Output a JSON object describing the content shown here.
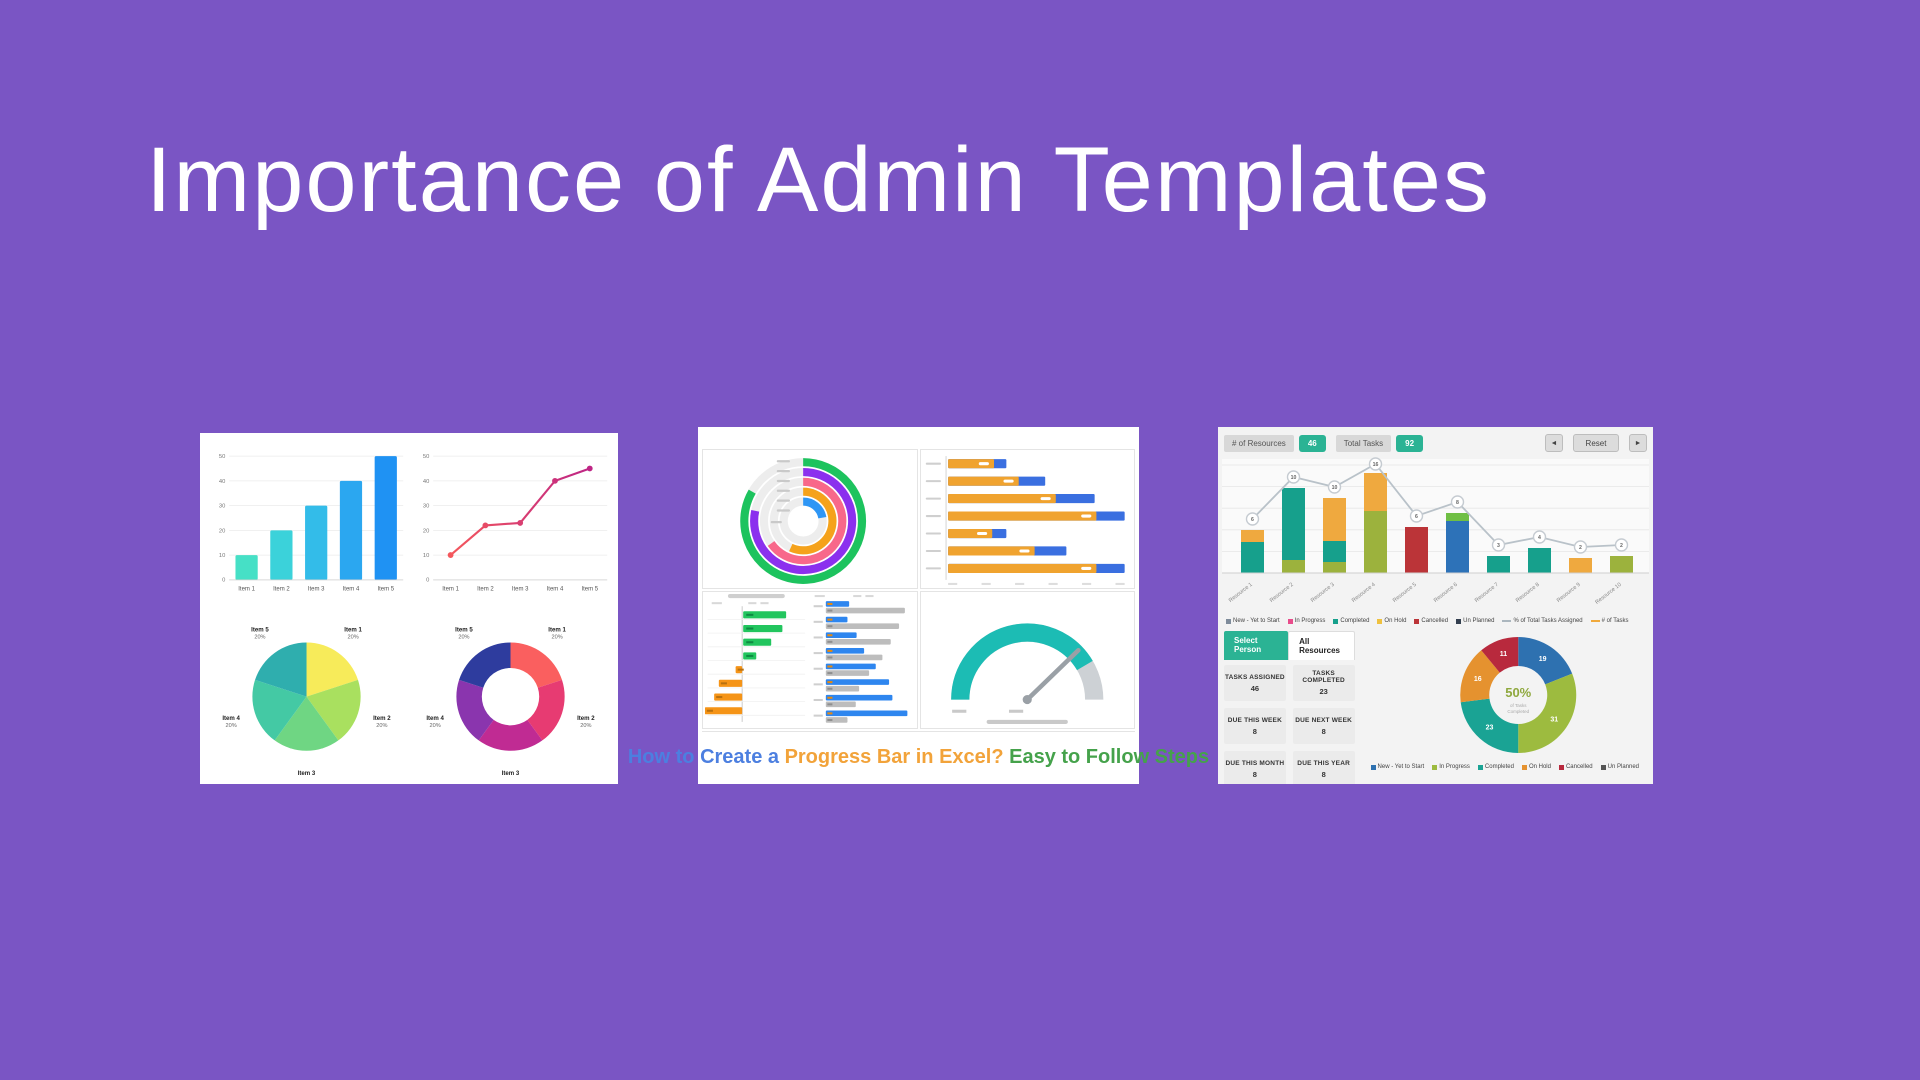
{
  "page": {
    "background": "#7A55C4",
    "title": "Importance of Admin Templates"
  },
  "progress_caption": [
    {
      "text": "How to Create a ",
      "color": "#4C7FE0"
    },
    {
      "text": "Progress Bar in Excel?",
      "color": "#F2A33A"
    },
    {
      "text": " Easy to Follow Steps",
      "color": "#45A24B"
    }
  ],
  "excel": {
    "toolbar": {
      "chip1_label": "# of Resources",
      "chip1_value": "46",
      "chip2_label": "Total Tasks",
      "chip2_value": "92",
      "prev": "◄",
      "reset": "Reset",
      "next": "►"
    },
    "tabs": [
      {
        "label": "Select Person",
        "active": true
      },
      {
        "label": "All Resources",
        "active": false
      }
    ],
    "stat_cards": [
      {
        "label": "TASKS ASSIGNED",
        "value": "46"
      },
      {
        "label": "TASKS COMPLETED",
        "value": "23"
      },
      {
        "label": "DUE THIS WEEK",
        "value": "8"
      },
      {
        "label": "DUE NEXT WEEK",
        "value": "8"
      },
      {
        "label": "DUE THIS MONTH",
        "value": "8"
      },
      {
        "label": "DUE THIS YEAR",
        "value": "8"
      }
    ]
  },
  "chart_data": [
    {
      "id": "bar5",
      "type": "bar",
      "categories": [
        "Item 1",
        "Item 2",
        "Item 3",
        "Item 4",
        "Item 5"
      ],
      "values": [
        10,
        20,
        30,
        40,
        50
      ],
      "ylim": [
        0,
        50
      ],
      "yticks": [
        0,
        10,
        20,
        30,
        40,
        50
      ],
      "grid": true,
      "colors": [
        "#46E0C6",
        "#3BD2DA",
        "#33BCE9",
        "#2BA7F0",
        "#1F92F3"
      ]
    },
    {
      "id": "line5",
      "type": "line",
      "categories": [
        "Item 1",
        "Item 2",
        "Item 3",
        "Item 4",
        "Item 5"
      ],
      "values": [
        10,
        22,
        23,
        40,
        45
      ],
      "ylim": [
        0,
        50
      ],
      "yticks": [
        0,
        10,
        20,
        30,
        40,
        50
      ],
      "grid": true,
      "color_start": "#F4575C",
      "color_end": "#BE2585"
    },
    {
      "id": "pie5",
      "type": "pie",
      "inner": 0,
      "labels": [
        "Item 1",
        "Item 2",
        "Item 3",
        "Item 4",
        "Item 5"
      ],
      "values": [
        20,
        20,
        20,
        20,
        20
      ],
      "value_labels": [
        "20%",
        "20%",
        "20%",
        "20%",
        "20%"
      ],
      "colors": [
        "#F7EB5A",
        "#A9E05F",
        "#6FD683",
        "#44C9A4",
        "#2FAEAE"
      ]
    },
    {
      "id": "donut5",
      "type": "pie",
      "inner": 0.53,
      "labels": [
        "Item 1",
        "Item 2",
        "Item 3",
        "Item 4",
        "Item 5"
      ],
      "values": [
        20,
        20,
        20,
        20,
        20
      ],
      "value_labels": [
        "20%",
        "20%",
        "20%",
        "20%",
        "20%"
      ],
      "colors": [
        "#FA5F5F",
        "#E73B72",
        "#C02B93",
        "#8A35AE",
        "#2E3C9E"
      ]
    },
    {
      "id": "rings",
      "type": "radial-progress",
      "track_color": "#EDEDED",
      "rings": [
        {
          "color": "#1DC35E",
          "sweep": 300
        },
        {
          "color": "#8B30EE",
          "sweep": 282
        },
        {
          "color": "#F8688A",
          "sweep": 235
        },
        {
          "color": "#F5A21B",
          "sweep": 205
        },
        {
          "color": "#2E96F5",
          "sweep": 80
        }
      ]
    },
    {
      "id": "hprog",
      "type": "progress-bars",
      "track_color": "#3A6FE0",
      "fill_color": "#F0A32F",
      "rows": [
        {
          "track": 33,
          "fill": 26
        },
        {
          "track": 55,
          "fill": 40
        },
        {
          "track": 83,
          "fill": 61
        },
        {
          "track": 100,
          "fill": 84
        },
        {
          "track": 33,
          "fill": 25
        },
        {
          "track": 67,
          "fill": 49
        },
        {
          "track": 100,
          "fill": 84
        }
      ]
    },
    {
      "id": "tornado",
      "type": "diverging-bars",
      "right_color": "#22C55E",
      "left_color": "#F59417",
      "right_values": [
        46,
        42,
        30,
        14
      ],
      "left_values": [
        7,
        25,
        30,
        40
      ]
    },
    {
      "id": "pairs",
      "type": "paired-bars",
      "primary_color": "#2E86EF",
      "secondary_color": "#BDBDBD",
      "rows": [
        [
          28,
          95
        ],
        [
          26,
          88
        ],
        [
          37,
          78
        ],
        [
          46,
          68
        ],
        [
          60,
          52
        ],
        [
          76,
          40
        ],
        [
          80,
          36
        ],
        [
          98,
          26
        ]
      ]
    },
    {
      "id": "gauge",
      "type": "gauge",
      "value": 0.83,
      "arc_color": "#1CBCB4",
      "track_color": "#CDD1D5",
      "needle_angle": 44
    },
    {
      "id": "combo",
      "type": "bar",
      "categories": [
        "Resource 1",
        "Resource 2",
        "Resource 3",
        "Resource 4",
        "Resource 5",
        "Resource 6",
        "Resource 7",
        "Resource 8",
        "Resource 9",
        "Resource 10"
      ],
      "stacks": [
        [
          [
            "#16A08C",
            31
          ],
          [
            "#EFA93F",
            12
          ]
        ],
        [
          [
            "#9CB23D",
            13
          ],
          [
            "#16A08C",
            72
          ]
        ],
        [
          [
            "#9CB23D",
            11
          ],
          [
            "#16A08C",
            21
          ],
          [
            "#EFA93F",
            43
          ]
        ],
        [
          [
            "#9CB23D",
            62
          ],
          [
            "#EFA93F",
            38
          ]
        ],
        [
          [
            "#BB3438",
            46
          ]
        ],
        [
          [
            "#2D72B8",
            52
          ],
          [
            "#6FBF44",
            8
          ]
        ],
        [
          [
            "#16A08C",
            17
          ]
        ],
        [
          [
            "#16A08C",
            25
          ]
        ],
        [
          [
            "#EFA93F",
            15
          ]
        ],
        [
          [
            "#9CB23D",
            17
          ]
        ]
      ],
      "line_values": [
        6,
        10,
        10,
        16,
        6,
        8,
        3,
        4,
        2,
        2
      ],
      "line_color": "#B9C2C9",
      "legend": [
        {
          "label": "New - Yet to Start",
          "color": "#7F8C9B"
        },
        {
          "label": "In Progress",
          "color": "#E84C8B"
        },
        {
          "label": "Completed",
          "color": "#16A08C"
        },
        {
          "label": "On Hold",
          "color": "#EFC13F"
        },
        {
          "label": "Cancelled",
          "color": "#BB3438"
        },
        {
          "label": "Un Planned",
          "color": "#333F4F"
        },
        {
          "label": "% of Total Tasks Assigned",
          "color": "#ABB6BE",
          "marker": "line"
        },
        {
          "label": "# of Tasks",
          "color": "#F0A93C",
          "marker": "line"
        }
      ]
    },
    {
      "id": "xldonut",
      "type": "pie",
      "inner": 0.5,
      "values": [
        19,
        31,
        23,
        16,
        11
      ],
      "slice_labels": [
        "19",
        "31",
        "23",
        "16",
        "11"
      ],
      "colors": [
        "#2E71B0",
        "#9DBB3F",
        "#1AA394",
        "#E5922F",
        "#B8293D"
      ],
      "center_value": "50%",
      "center_sub": "of Tasks Completed",
      "legend": [
        {
          "label": "New - Yet to Start",
          "color": "#2E71B0"
        },
        {
          "label": "In Progress",
          "color": "#9DBB3F"
        },
        {
          "label": "Completed",
          "color": "#1AA394"
        },
        {
          "label": "On Hold",
          "color": "#E5922F"
        },
        {
          "label": "Cancelled",
          "color": "#B8293D"
        },
        {
          "label": "Un Planned",
          "color": "#555555"
        }
      ]
    }
  ]
}
